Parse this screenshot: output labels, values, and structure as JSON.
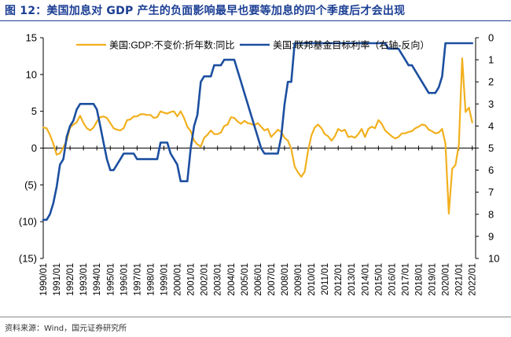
{
  "figure": {
    "title": "图 12：美国加息对 GDP 产生的负面影响最早也要等加息的四个季度后才会出现",
    "source": "资料来源：Wind，国元证券研究所"
  },
  "colors": {
    "gdp": "#f2b01e",
    "rate": "#1c4fa0",
    "title": "#1c3f94",
    "axis": "#000000"
  },
  "chart_data": {
    "type": "line",
    "title": "图 12：美国加息对 GDP 产生的负面影响最早也要等加息的四个季度后才会出现",
    "legend_position": "top",
    "x_range": [
      1990.0,
      2022.25
    ],
    "x_tick_labels": [
      "1990/01",
      "1991/01",
      "1992/01",
      "1993/01",
      "1994/01",
      "1995/01",
      "1996/01",
      "1997/01",
      "1998/01",
      "1999/01",
      "2000/01",
      "2001/01",
      "2002/01",
      "2003/01",
      "2004/01",
      "2005/01",
      "2006/01",
      "2007/01",
      "2008/01",
      "2009/01",
      "2010/01",
      "2011/01",
      "2012/01",
      "2013/01",
      "2014/01",
      "2015/01",
      "2016/01",
      "2017/01",
      "2018/01",
      "2019/01",
      "2020/01",
      "2021/01",
      "2022/01"
    ],
    "left_axis": {
      "ylim": [
        -15,
        15
      ],
      "ticks": [
        15,
        10,
        5,
        0,
        -5,
        -10,
        -15
      ],
      "tick_labels": [
        "15",
        "10",
        "5",
        "0",
        "(5)",
        "(10)",
        "(15)"
      ]
    },
    "right_axis": {
      "ylim": [
        0,
        10
      ],
      "inverted": true,
      "ticks": [
        0,
        1,
        2,
        3,
        4,
        5,
        6,
        7,
        8,
        9,
        10
      ],
      "tick_labels": [
        "0",
        "1",
        "2",
        "3",
        "4",
        "5",
        "6",
        "7",
        "8",
        "9",
        "10"
      ]
    },
    "series": [
      {
        "name": "美国:GDP:不变价:折年数:同比",
        "axis": "left",
        "color": "#f2b01e",
        "points": [
          [
            1990.0,
            2.8
          ],
          [
            1990.25,
            2.7
          ],
          [
            1990.5,
            1.8
          ],
          [
            1990.75,
            0.6
          ],
          [
            1991.0,
            -0.9
          ],
          [
            1991.25,
            -0.7
          ],
          [
            1991.5,
            0.1
          ],
          [
            1991.75,
            1.0
          ],
          [
            1992.0,
            2.8
          ],
          [
            1992.25,
            3.2
          ],
          [
            1992.5,
            3.5
          ],
          [
            1992.75,
            4.4
          ],
          [
            1993.0,
            3.4
          ],
          [
            1993.25,
            2.7
          ],
          [
            1993.5,
            2.4
          ],
          [
            1993.75,
            2.8
          ],
          [
            1994.0,
            3.6
          ],
          [
            1994.25,
            4.2
          ],
          [
            1994.5,
            4.3
          ],
          [
            1994.75,
            4.1
          ],
          [
            1995.0,
            3.4
          ],
          [
            1995.25,
            2.7
          ],
          [
            1995.5,
            2.5
          ],
          [
            1995.75,
            2.4
          ],
          [
            1996.0,
            2.7
          ],
          [
            1996.25,
            3.8
          ],
          [
            1996.5,
            3.9
          ],
          [
            1996.75,
            4.3
          ],
          [
            1997.0,
            4.3
          ],
          [
            1997.25,
            4.6
          ],
          [
            1997.5,
            4.6
          ],
          [
            1997.75,
            4.5
          ],
          [
            1998.0,
            4.5
          ],
          [
            1998.25,
            4.1
          ],
          [
            1998.5,
            4.2
          ],
          [
            1998.75,
            5.0
          ],
          [
            1999.0,
            4.8
          ],
          [
            1999.25,
            4.7
          ],
          [
            1999.5,
            4.9
          ],
          [
            1999.75,
            5.0
          ],
          [
            2000.0,
            4.3
          ],
          [
            2000.25,
            5.0
          ],
          [
            2000.5,
            4.1
          ],
          [
            2000.75,
            2.9
          ],
          [
            2001.0,
            2.3
          ],
          [
            2001.25,
            1.0
          ],
          [
            2001.5,
            0.5
          ],
          [
            2001.75,
            0.2
          ],
          [
            2002.0,
            1.4
          ],
          [
            2002.25,
            1.8
          ],
          [
            2002.5,
            2.4
          ],
          [
            2002.75,
            1.9
          ],
          [
            2003.0,
            1.9
          ],
          [
            2003.25,
            2.1
          ],
          [
            2003.5,
            3.0
          ],
          [
            2003.75,
            3.2
          ],
          [
            2004.0,
            4.2
          ],
          [
            2004.25,
            4.1
          ],
          [
            2004.5,
            3.6
          ],
          [
            2004.75,
            3.3
          ],
          [
            2005.0,
            3.7
          ],
          [
            2005.25,
            3.4
          ],
          [
            2005.5,
            3.3
          ],
          [
            2005.75,
            3.1
          ],
          [
            2006.0,
            3.4
          ],
          [
            2006.25,
            2.9
          ],
          [
            2006.5,
            2.4
          ],
          [
            2006.75,
            2.6
          ],
          [
            2007.0,
            1.5
          ],
          [
            2007.25,
            2.0
          ],
          [
            2007.5,
            2.5
          ],
          [
            2007.75,
            2.2
          ],
          [
            2008.0,
            1.4
          ],
          [
            2008.25,
            1.0
          ],
          [
            2008.5,
            -0.1
          ],
          [
            2008.75,
            -2.5
          ],
          [
            2009.0,
            -3.3
          ],
          [
            2009.25,
            -3.9
          ],
          [
            2009.5,
            -3.2
          ],
          [
            2009.75,
            -0.4
          ],
          [
            2010.0,
            1.7
          ],
          [
            2010.25,
            2.8
          ],
          [
            2010.5,
            3.2
          ],
          [
            2010.75,
            2.7
          ],
          [
            2011.0,
            1.9
          ],
          [
            2011.25,
            1.6
          ],
          [
            2011.5,
            1.0
          ],
          [
            2011.75,
            1.6
          ],
          [
            2012.0,
            2.6
          ],
          [
            2012.25,
            2.3
          ],
          [
            2012.5,
            2.5
          ],
          [
            2012.75,
            1.5
          ],
          [
            2013.0,
            1.6
          ],
          [
            2013.25,
            1.4
          ],
          [
            2013.5,
            1.9
          ],
          [
            2013.75,
            2.6
          ],
          [
            2014.0,
            1.5
          ],
          [
            2014.25,
            2.6
          ],
          [
            2014.5,
            2.9
          ],
          [
            2014.75,
            2.7
          ],
          [
            2015.0,
            3.8
          ],
          [
            2015.25,
            3.3
          ],
          [
            2015.5,
            2.4
          ],
          [
            2015.75,
            2.0
          ],
          [
            2016.0,
            1.6
          ],
          [
            2016.25,
            1.3
          ],
          [
            2016.5,
            1.5
          ],
          [
            2016.75,
            2.0
          ],
          [
            2017.0,
            2.0
          ],
          [
            2017.25,
            2.2
          ],
          [
            2017.5,
            2.3
          ],
          [
            2017.75,
            2.7
          ],
          [
            2018.0,
            2.9
          ],
          [
            2018.25,
            3.2
          ],
          [
            2018.5,
            3.1
          ],
          [
            2018.75,
            2.5
          ],
          [
            2019.0,
            2.3
          ],
          [
            2019.25,
            2.0
          ],
          [
            2019.5,
            2.1
          ],
          [
            2019.75,
            2.6
          ],
          [
            2020.0,
            0.6
          ],
          [
            2020.25,
            -8.9
          ],
          [
            2020.5,
            -2.8
          ],
          [
            2020.75,
            -2.3
          ],
          [
            2021.0,
            0.5
          ],
          [
            2021.25,
            12.2
          ],
          [
            2021.5,
            4.9
          ],
          [
            2021.75,
            5.5
          ],
          [
            2022.0,
            3.5
          ]
        ]
      },
      {
        "name": "美国:联邦基金目标利率（右轴-反向）",
        "axis": "right",
        "color": "#1c4fa0",
        "points": [
          [
            1990.0,
            8.25
          ],
          [
            1990.25,
            8.25
          ],
          [
            1990.5,
            8.0
          ],
          [
            1990.75,
            7.5
          ],
          [
            1991.0,
            6.75
          ],
          [
            1991.25,
            5.75
          ],
          [
            1991.5,
            5.5
          ],
          [
            1991.75,
            4.5
          ],
          [
            1992.0,
            4.0
          ],
          [
            1992.25,
            3.75
          ],
          [
            1992.5,
            3.25
          ],
          [
            1992.75,
            3.0
          ],
          [
            1993.0,
            3.0
          ],
          [
            1993.25,
            3.0
          ],
          [
            1993.5,
            3.0
          ],
          [
            1993.75,
            3.0
          ],
          [
            1994.0,
            3.25
          ],
          [
            1994.25,
            4.0
          ],
          [
            1994.5,
            4.75
          ],
          [
            1994.75,
            5.5
          ],
          [
            1995.0,
            6.0
          ],
          [
            1995.25,
            6.0
          ],
          [
            1995.5,
            5.75
          ],
          [
            1995.75,
            5.5
          ],
          [
            1996.0,
            5.25
          ],
          [
            1996.25,
            5.25
          ],
          [
            1996.5,
            5.25
          ],
          [
            1996.75,
            5.25
          ],
          [
            1997.0,
            5.5
          ],
          [
            1997.25,
            5.5
          ],
          [
            1997.5,
            5.5
          ],
          [
            1997.75,
            5.5
          ],
          [
            1998.0,
            5.5
          ],
          [
            1998.25,
            5.5
          ],
          [
            1998.5,
            5.5
          ],
          [
            1998.75,
            4.75
          ],
          [
            1999.0,
            4.75
          ],
          [
            1999.25,
            4.75
          ],
          [
            1999.5,
            5.25
          ],
          [
            1999.75,
            5.5
          ],
          [
            2000.0,
            5.75
          ],
          [
            2000.25,
            6.5
          ],
          [
            2000.5,
            6.5
          ],
          [
            2000.75,
            6.5
          ],
          [
            2001.0,
            5.0
          ],
          [
            2001.25,
            4.0
          ],
          [
            2001.5,
            3.5
          ],
          [
            2001.75,
            2.0
          ],
          [
            2002.0,
            1.75
          ],
          [
            2002.25,
            1.75
          ],
          [
            2002.5,
            1.75
          ],
          [
            2002.75,
            1.25
          ],
          [
            2003.0,
            1.25
          ],
          [
            2003.25,
            1.25
          ],
          [
            2003.5,
            1.0
          ],
          [
            2003.75,
            1.0
          ],
          [
            2004.0,
            1.0
          ],
          [
            2004.25,
            1.0
          ],
          [
            2004.5,
            1.5
          ],
          [
            2004.75,
            2.0
          ],
          [
            2005.0,
            2.5
          ],
          [
            2005.25,
            3.0
          ],
          [
            2005.5,
            3.5
          ],
          [
            2005.75,
            4.0
          ],
          [
            2006.0,
            4.5
          ],
          [
            2006.25,
            5.0
          ],
          [
            2006.5,
            5.25
          ],
          [
            2006.75,
            5.25
          ],
          [
            2007.0,
            5.25
          ],
          [
            2007.25,
            5.25
          ],
          [
            2007.5,
            5.25
          ],
          [
            2007.75,
            4.5
          ],
          [
            2008.0,
            3.0
          ],
          [
            2008.25,
            2.0
          ],
          [
            2008.5,
            2.0
          ],
          [
            2008.75,
            0.25
          ],
          [
            2009.0,
            0.25
          ],
          [
            2009.25,
            0.25
          ],
          [
            2009.5,
            0.25
          ],
          [
            2009.75,
            0.25
          ],
          [
            2010.0,
            0.25
          ],
          [
            2010.25,
            0.25
          ],
          [
            2010.5,
            0.25
          ],
          [
            2010.75,
            0.25
          ],
          [
            2011.0,
            0.25
          ],
          [
            2011.25,
            0.25
          ],
          [
            2011.5,
            0.25
          ],
          [
            2011.75,
            0.25
          ],
          [
            2012.0,
            0.25
          ],
          [
            2012.25,
            0.25
          ],
          [
            2012.5,
            0.25
          ],
          [
            2012.75,
            0.25
          ],
          [
            2013.0,
            0.25
          ],
          [
            2013.25,
            0.25
          ],
          [
            2013.5,
            0.25
          ],
          [
            2013.75,
            0.25
          ],
          [
            2014.0,
            0.25
          ],
          [
            2014.25,
            0.25
          ],
          [
            2014.5,
            0.25
          ],
          [
            2014.75,
            0.25
          ],
          [
            2015.0,
            0.25
          ],
          [
            2015.25,
            0.25
          ],
          [
            2015.5,
            0.25
          ],
          [
            2015.75,
            0.5
          ],
          [
            2016.0,
            0.5
          ],
          [
            2016.25,
            0.5
          ],
          [
            2016.5,
            0.5
          ],
          [
            2016.75,
            0.75
          ],
          [
            2017.0,
            1.0
          ],
          [
            2017.25,
            1.25
          ],
          [
            2017.5,
            1.25
          ],
          [
            2017.75,
            1.5
          ],
          [
            2018.0,
            1.75
          ],
          [
            2018.25,
            2.0
          ],
          [
            2018.5,
            2.25
          ],
          [
            2018.75,
            2.5
          ],
          [
            2019.0,
            2.5
          ],
          [
            2019.25,
            2.5
          ],
          [
            2019.5,
            2.25
          ],
          [
            2019.75,
            1.75
          ],
          [
            2020.0,
            0.25
          ],
          [
            2020.25,
            0.25
          ],
          [
            2020.5,
            0.25
          ],
          [
            2020.75,
            0.25
          ],
          [
            2021.0,
            0.25
          ],
          [
            2021.25,
            0.25
          ],
          [
            2021.5,
            0.25
          ],
          [
            2021.75,
            0.25
          ],
          [
            2022.0,
            0.25
          ]
        ]
      }
    ]
  }
}
